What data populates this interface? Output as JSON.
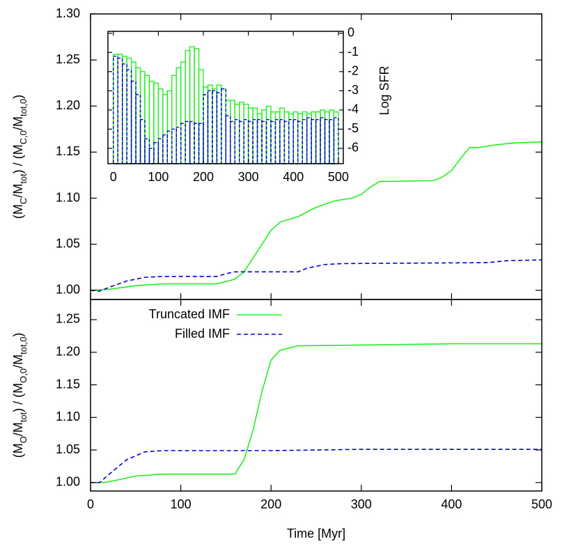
{
  "chart_data": [
    {
      "type": "line",
      "ylabel": [
        {
          "text": "(M"
        },
        {
          "text": "C",
          "sub": true
        },
        {
          "text": "/M"
        },
        {
          "text": "tot",
          "sub": true
        },
        {
          "text": ") / (M"
        },
        {
          "text": "C,0",
          "sub": true
        },
        {
          "text": "/M"
        },
        {
          "text": "tot,0",
          "sub": true
        },
        {
          "text": ")"
        }
      ],
      "xlim": [
        0,
        500
      ],
      "xticks": [
        0,
        100,
        200,
        300,
        400,
        500
      ],
      "ylim": [
        0.99,
        1.3
      ],
      "yticks": [
        {
          "value": 1.0,
          "label": "1.00"
        },
        1.05,
        {
          "value": 1.1,
          "label": "1.10"
        },
        1.15,
        {
          "value": 1.2,
          "label": "1.20"
        },
        1.25,
        {
          "value": 1.3,
          "label": "1.30"
        }
      ],
      "series": [
        {
          "color": "#22ee22",
          "dash": false,
          "x": [
            0,
            20,
            50,
            80,
            140,
            160,
            170,
            180,
            190,
            200,
            210,
            230,
            250,
            270,
            290,
            300,
            310,
            320,
            380,
            390,
            400,
            410,
            420,
            430,
            450,
            470,
            500
          ],
          "values": [
            1.0,
            1.001,
            1.005,
            1.007,
            1.007,
            1.012,
            1.02,
            1.035,
            1.05,
            1.065,
            1.074,
            1.08,
            1.09,
            1.097,
            1.1,
            1.104,
            1.112,
            1.118,
            1.119,
            1.123,
            1.13,
            1.143,
            1.155,
            1.155,
            1.158,
            1.16,
            1.161
          ]
        },
        {
          "color": "#0000cc",
          "dash": true,
          "x": [
            0,
            10,
            20,
            40,
            60,
            80,
            140,
            150,
            160,
            230,
            240,
            260,
            280,
            440,
            460,
            500
          ],
          "values": [
            1.0,
            0.999,
            1.003,
            1.01,
            1.014,
            1.015,
            1.015,
            1.018,
            1.02,
            1.02,
            1.024,
            1.028,
            1.029,
            1.03,
            1.032,
            1.033
          ]
        }
      ]
    },
    {
      "type": "line",
      "xlabel": "Time [Myr]",
      "ylabel": [
        {
          "text": "(M"
        },
        {
          "text": "O",
          "sub": true
        },
        {
          "text": "/M"
        },
        {
          "text": "tot",
          "sub": true
        },
        {
          "text": ") / (M"
        },
        {
          "text": "O,0",
          "sub": true
        },
        {
          "text": "/M"
        },
        {
          "text": "tot,0",
          "sub": true
        },
        {
          "text": ")"
        }
      ],
      "xlim": [
        0,
        500
      ],
      "xticks": [
        0,
        100,
        200,
        300,
        400,
        500
      ],
      "ylim": [
        0.987,
        1.281
      ],
      "yticks": [
        {
          "value": 1.0,
          "label": "1.00"
        },
        1.05,
        {
          "value": 1.1,
          "label": "1.10"
        },
        1.15,
        {
          "value": 1.2,
          "label": "1.20"
        },
        1.25
      ],
      "legend": "top-left",
      "series": [
        {
          "name": "Truncated IMF",
          "color": "#22ee22",
          "dash": false,
          "x": [
            0,
            15,
            30,
            50,
            80,
            160,
            170,
            180,
            190,
            200,
            210,
            230,
            300,
            400,
            500
          ],
          "values": [
            1.0,
            1.0,
            1.004,
            1.01,
            1.013,
            1.013,
            1.035,
            1.08,
            1.14,
            1.188,
            1.203,
            1.21,
            1.211,
            1.213,
            1.213
          ]
        },
        {
          "name": "Filled IMF",
          "color": "#0000cc",
          "dash": true,
          "x": [
            0,
            10,
            20,
            40,
            60,
            80,
            200,
            300,
            500
          ],
          "values": [
            1.0,
            1.0,
            1.012,
            1.035,
            1.047,
            1.049,
            1.049,
            1.051,
            1.051
          ]
        }
      ]
    },
    {
      "type": "histogram",
      "ylabel": "Log SFR",
      "xlim": [
        -12,
        511
      ],
      "xticks": [
        0,
        100,
        200,
        300,
        400,
        500
      ],
      "ylim": [
        -6.8,
        0.1
      ],
      "yticks": [
        0,
        -1,
        -2,
        -3,
        -4,
        -5,
        -6
      ],
      "bins": [
        0,
        10,
        20,
        30,
        40,
        50,
        60,
        70,
        80,
        90,
        100,
        110,
        120,
        130,
        140,
        150,
        160,
        170,
        180,
        190,
        200,
        210,
        220,
        230,
        240,
        250,
        260,
        270,
        280,
        290,
        300,
        310,
        320,
        330,
        340,
        350,
        360,
        370,
        380,
        390,
        400,
        410,
        420,
        430,
        440,
        450,
        460,
        470,
        480,
        490,
        500
      ],
      "series": [
        {
          "color": "#22ee22",
          "dash": false,
          "values": [
            -1.1,
            -1.1,
            -1.2,
            -1.3,
            -1.5,
            -1.8,
            -2.0,
            -2.2,
            -2.5,
            -2.6,
            -2.9,
            -3.2,
            -3.0,
            -2.2,
            -1.8,
            -1.5,
            -0.9,
            -0.7,
            -0.8,
            -1.9,
            -2.8,
            -2.7,
            -2.9,
            -2.7,
            -2.9,
            -3.5,
            -3.5,
            -3.7,
            -3.6,
            -3.7,
            -3.9,
            -3.9,
            -4.2,
            -4.0,
            -3.8,
            -4.1,
            -4.1,
            -3.9,
            -4.1,
            -4.2,
            -4.1,
            -4.2,
            -4.1,
            -4.2,
            -4.1,
            -4.1,
            -4.0,
            -4.1,
            -4.0,
            -4.1
          ]
        },
        {
          "color": "#0000cc",
          "dash": true,
          "values": [
            -1.2,
            -1.3,
            -1.6,
            -1.9,
            -2.5,
            -3.2,
            -4.5,
            -5.5,
            -6.0,
            -5.7,
            -5.5,
            -5.3,
            -5.1,
            -5.0,
            -4.9,
            -4.7,
            -4.6,
            -4.6,
            -4.7,
            -4.7,
            -3.2,
            -3.0,
            -3.0,
            -3.1,
            -2.9,
            -4.3,
            -4.6,
            -4.5,
            -4.6,
            -4.5,
            -4.6,
            -4.5,
            -4.5,
            -4.6,
            -4.5,
            -4.6,
            -4.5,
            -4.5,
            -4.6,
            -4.5,
            -4.5,
            -4.6,
            -4.5,
            -4.4,
            -4.5,
            -4.5,
            -4.4,
            -4.5,
            -4.5,
            -4.4
          ]
        }
      ]
    }
  ]
}
